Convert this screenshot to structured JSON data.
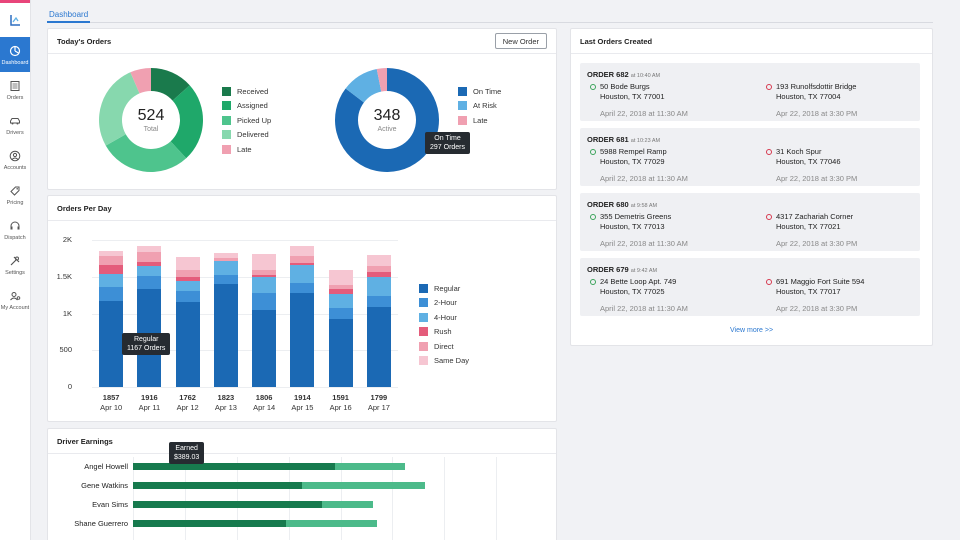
{
  "nav": {
    "logo": "logo",
    "items": [
      {
        "label": "Dashboard",
        "icon": "dashboard-icon"
      },
      {
        "label": "Orders",
        "icon": "orders-icon"
      },
      {
        "label": "Drivers",
        "icon": "car-icon"
      },
      {
        "label": "Accounts",
        "icon": "user-icon"
      },
      {
        "label": "Pricing",
        "icon": "tag-icon"
      },
      {
        "label": "Dispatch",
        "icon": "headset-icon"
      },
      {
        "label": "Settings",
        "icon": "tools-icon"
      },
      {
        "label": "My Account",
        "icon": "account-icon"
      }
    ]
  },
  "tabs": {
    "dashboard": "Dashboard"
  },
  "todays_orders": {
    "title": "Today's Orders",
    "new_order_label": "New Order",
    "status_donut": {
      "total": "524",
      "total_label": "Total",
      "legend": [
        {
          "label": "Received",
          "color": "#1a7a4c",
          "value": 70
        },
        {
          "label": "Assigned",
          "color": "#1fa86a",
          "value": 130
        },
        {
          "label": "Picked Up",
          "color": "#4ec48d",
          "value": 150
        },
        {
          "label": "Delivered",
          "color": "#87d8ae",
          "value": 140
        },
        {
          "label": "Late",
          "color": "#f0a0b1",
          "value": 34
        }
      ]
    },
    "active_donut": {
      "total": "348",
      "total_label": "Active",
      "legend": [
        {
          "label": "On Time",
          "color": "#1b69b4",
          "value": 297
        },
        {
          "label": "At Risk",
          "color": "#5fb0e3",
          "value": 40
        },
        {
          "label": "Late",
          "color": "#f0a0b1",
          "value": 11
        }
      ],
      "tooltip": {
        "title": "On Time",
        "value": "297 Orders"
      }
    }
  },
  "orders_per_day": {
    "title": "Orders Per Day",
    "tooltip": {
      "title": "Regular",
      "value": "1167 Orders"
    }
  },
  "chart_data": {
    "type": "bar",
    "stacked": true,
    "title": "Orders Per Day",
    "categories": [
      "Apr 10",
      "Apr 11",
      "Apr 12",
      "Apr 13",
      "Apr 14",
      "Apr 15",
      "Apr 16",
      "Apr 17"
    ],
    "totals": [
      "1857",
      "1916",
      "1762",
      "1823",
      "1806",
      "1914",
      "1591",
      "1799"
    ],
    "ylim": [
      0,
      2000
    ],
    "yticks": [
      "2K",
      "1.5K",
      "1K",
      "500",
      "0"
    ],
    "series": [
      {
        "name": "Regular",
        "color": "#1b69b4",
        "values": [
          1167,
          1330,
          1150,
          1400,
          1050,
          1280,
          920,
          1090
        ]
      },
      {
        "name": "2-Hour",
        "color": "#3d8fd6",
        "values": [
          200,
          180,
          150,
          120,
          230,
          140,
          150,
          150
        ]
      },
      {
        "name": "4-Hour",
        "color": "#5fb0e3",
        "values": [
          170,
          130,
          140,
          200,
          220,
          240,
          200,
          250
        ]
      },
      {
        "name": "Rush",
        "color": "#e45c7b",
        "values": [
          120,
          60,
          50,
          0,
          20,
          30,
          60,
          70
        ]
      },
      {
        "name": "Direct",
        "color": "#f0a0b1",
        "values": [
          130,
          130,
          100,
          40,
          70,
          90,
          60,
          90
        ]
      },
      {
        "name": "Same Day",
        "color": "#f6c6d2",
        "values": [
          70,
          86,
          172,
          63,
          216,
          134,
          201,
          149
        ]
      }
    ]
  },
  "driver_earnings": {
    "title": "Driver Earnings",
    "tooltip": {
      "title": "Earned",
      "value": "$389.03"
    },
    "drivers": [
      {
        "name": "Angel Howell",
        "earned": 389.03,
        "total": 525
      },
      {
        "name": "Gene Watkins",
        "earned": 325,
        "total": 562
      },
      {
        "name": "Evan Sims",
        "earned": 365,
        "total": 463
      },
      {
        "name": "Shane Guerrero",
        "earned": 295,
        "total": 470
      }
    ],
    "xmax": 800
  },
  "last_orders": {
    "title": "Last Orders Created",
    "view_more": "View more >>",
    "orders": [
      {
        "id": "ORDER 682",
        "time": "at 10:40 AM",
        "pickup": {
          "line1": "50 Bode Burgs",
          "line2": "Houston, TX 77001",
          "ts": "April 22, 2018 at 11:30 AM"
        },
        "dropoff": {
          "line1": "193 Runolfsdottir Bridge",
          "line2": "Houston, TX 77004",
          "ts": "Apr 22, 2018 at 3:30 PM"
        }
      },
      {
        "id": "ORDER 681",
        "time": "at 10:23 AM",
        "pickup": {
          "line1": "5988 Rempel Ramp",
          "line2": "Houston, TX 77029",
          "ts": "April 22, 2018 at 11:30 AM"
        },
        "dropoff": {
          "line1": "31 Koch Spur",
          "line2": "Houston, TX 77046",
          "ts": "Apr 22, 2018 at 3:30 PM"
        }
      },
      {
        "id": "ORDER 680",
        "time": "at 9:58 AM",
        "pickup": {
          "line1": "355 Demetris Greens",
          "line2": "Houston, TX 77013",
          "ts": "April 22, 2018 at 11:30 AM"
        },
        "dropoff": {
          "line1": "4317 Zachariah Corner",
          "line2": "Houston, TX 77021",
          "ts": "Apr 22, 2018 at 3:30 PM"
        }
      },
      {
        "id": "ORDER 679",
        "time": "at 9:42 AM",
        "pickup": {
          "line1": "24 Bette Loop Apt. 749",
          "line2": "Houston, TX 77025",
          "ts": "April 22, 2018 at 11:30 AM"
        },
        "dropoff": {
          "line1": "691 Maggio Fort Suite 594",
          "line2": "Houston, TX 77017",
          "ts": "Apr 22, 2018 at 3:30 PM"
        }
      }
    ]
  }
}
